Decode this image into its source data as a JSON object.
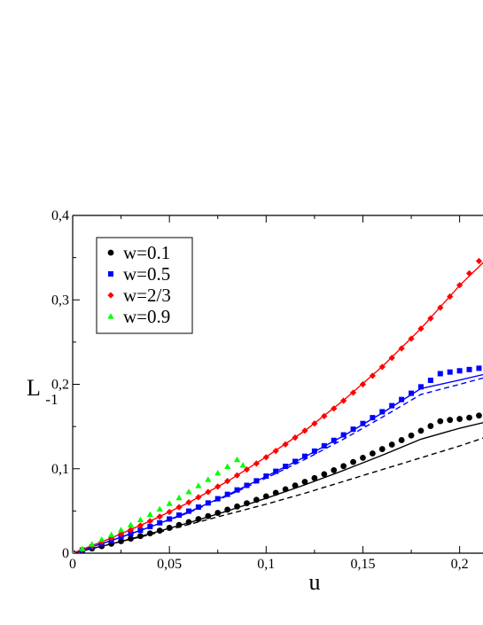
{
  "chart_data": {
    "type": "scatter",
    "xlabel": "u",
    "ylabel": "L",
    "ylabel_subscript": "-1",
    "xlim": [
      0,
      0.213
    ],
    "ylim": [
      0,
      0.4
    ],
    "x_ticks": [
      0,
      0.05,
      0.1,
      0.15,
      0.2
    ],
    "x_tick_labels": [
      "0",
      "0,05",
      "0,1",
      "0,15",
      "0,2"
    ],
    "y_ticks": [
      0,
      0.1,
      0.2,
      0.3,
      0.4
    ],
    "y_tick_labels": [
      "0",
      "0,1",
      "0,2",
      "0,3",
      "0,4"
    ],
    "legend_position": "top-left",
    "series": [
      {
        "name": "w=0.1",
        "color": "#000000",
        "marker": "circle",
        "x": [
          0,
          0.005,
          0.01,
          0.015,
          0.02,
          0.025,
          0.03,
          0.035,
          0.04,
          0.045,
          0.05,
          0.055,
          0.06,
          0.065,
          0.07,
          0.075,
          0.08,
          0.085,
          0.09,
          0.095,
          0.1,
          0.105,
          0.11,
          0.115,
          0.12,
          0.125,
          0.13,
          0.135,
          0.14,
          0.145,
          0.15,
          0.155,
          0.16,
          0.165,
          0.17,
          0.175,
          0.18,
          0.185,
          0.19,
          0.195,
          0.2,
          0.205,
          0.21
        ],
        "y": [
          0,
          0.0027,
          0.0055,
          0.0083,
          0.0112,
          0.0142,
          0.0172,
          0.0203,
          0.0235,
          0.0267,
          0.03,
          0.0334,
          0.0369,
          0.0404,
          0.044,
          0.0477,
          0.0515,
          0.0553,
          0.0592,
          0.0632,
          0.0673,
          0.0715,
          0.0757,
          0.0801,
          0.0845,
          0.089,
          0.0936,
          0.0983,
          0.1031,
          0.108,
          0.113,
          0.1181,
          0.1233,
          0.1286,
          0.1339,
          0.1394,
          0.145,
          0.1506,
          0.1563,
          0.1578,
          0.159,
          0.1605,
          0.163
        ]
      },
      {
        "name": "w=0.5",
        "color": "#0000ff",
        "marker": "square",
        "x": [
          0,
          0.005,
          0.01,
          0.015,
          0.02,
          0.025,
          0.03,
          0.035,
          0.04,
          0.045,
          0.05,
          0.055,
          0.06,
          0.065,
          0.07,
          0.075,
          0.08,
          0.085,
          0.09,
          0.095,
          0.1,
          0.105,
          0.11,
          0.115,
          0.12,
          0.125,
          0.13,
          0.135,
          0.14,
          0.145,
          0.15,
          0.155,
          0.16,
          0.165,
          0.17,
          0.175,
          0.18,
          0.185,
          0.19,
          0.195,
          0.2,
          0.205,
          0.21
        ],
        "y": [
          0,
          0.0036,
          0.0073,
          0.0111,
          0.015,
          0.019,
          0.0231,
          0.0273,
          0.0316,
          0.036,
          0.0405,
          0.0451,
          0.0498,
          0.0546,
          0.0595,
          0.0645,
          0.0697,
          0.0749,
          0.0803,
          0.0857,
          0.0913,
          0.097,
          0.1028,
          0.1087,
          0.1148,
          0.1209,
          0.1272,
          0.1336,
          0.1401,
          0.1468,
          0.1536,
          0.1605,
          0.1675,
          0.1747,
          0.182,
          0.1894,
          0.197,
          0.2047,
          0.2126,
          0.2145,
          0.216,
          0.2175,
          0.219
        ]
      },
      {
        "name": "w=2/3",
        "color": "#ff0000",
        "marker": "diamond",
        "x": [
          0,
          0.005,
          0.01,
          0.015,
          0.02,
          0.025,
          0.03,
          0.035,
          0.04,
          0.045,
          0.05,
          0.055,
          0.06,
          0.065,
          0.07,
          0.075,
          0.08,
          0.085,
          0.09,
          0.095,
          0.1,
          0.105,
          0.11,
          0.115,
          0.12,
          0.125,
          0.13,
          0.135,
          0.14,
          0.145,
          0.15,
          0.155,
          0.16,
          0.165,
          0.17,
          0.175,
          0.18,
          0.185,
          0.19,
          0.195,
          0.2,
          0.205,
          0.21
        ],
        "y": [
          0,
          0.0043,
          0.0087,
          0.0132,
          0.0179,
          0.0227,
          0.0276,
          0.0327,
          0.0379,
          0.0433,
          0.0488,
          0.0545,
          0.0603,
          0.0663,
          0.0725,
          0.0789,
          0.0854,
          0.0922,
          0.0991,
          0.1062,
          0.1136,
          0.1211,
          0.1289,
          0.1369,
          0.1451,
          0.1536,
          0.1623,
          0.1713,
          0.1806,
          0.1901,
          0.2,
          0.2101,
          0.2206,
          0.2314,
          0.2425,
          0.254,
          0.2659,
          0.2781,
          0.2908,
          0.3039,
          0.3174,
          0.3314,
          0.3459
        ]
      },
      {
        "name": "w=0.9",
        "color": "#00ff00",
        "marker": "triangle",
        "x": [
          0,
          0.005,
          0.01,
          0.015,
          0.02,
          0.025,
          0.03,
          0.035,
          0.04,
          0.045,
          0.05,
          0.055,
          0.06,
          0.065,
          0.07,
          0.075,
          0.08,
          0.085,
          0.088
        ],
        "y": [
          0,
          0.0052,
          0.0105,
          0.016,
          0.0216,
          0.0274,
          0.0333,
          0.0394,
          0.0457,
          0.0521,
          0.0587,
          0.0655,
          0.0725,
          0.0797,
          0.0871,
          0.0947,
          0.1025,
          0.1106,
          0.104
        ]
      }
    ],
    "fit_lines": [
      {
        "style": "solid",
        "color": "#000000",
        "x": [
          0,
          0.02,
          0.04,
          0.06,
          0.08,
          0.1,
          0.12,
          0.14,
          0.16,
          0.18,
          0.2,
          0.213
        ],
        "y": [
          0,
          0.011,
          0.023,
          0.036,
          0.05,
          0.065,
          0.081,
          0.098,
          0.116,
          0.135,
          0.148,
          0.155
        ]
      },
      {
        "style": "dashed",
        "color": "#000000",
        "x": [
          0,
          0.02,
          0.04,
          0.06,
          0.08,
          0.1,
          0.12,
          0.14,
          0.16,
          0.18,
          0.2,
          0.213
        ],
        "y": [
          0,
          0.011,
          0.022,
          0.034,
          0.046,
          0.058,
          0.071,
          0.085,
          0.099,
          0.113,
          0.127,
          0.137
        ]
      },
      {
        "style": "solid",
        "color": "#0000ff",
        "x": [
          0,
          0.02,
          0.04,
          0.06,
          0.08,
          0.1,
          0.12,
          0.14,
          0.16,
          0.18,
          0.2,
          0.213
        ],
        "y": [
          0,
          0.015,
          0.031,
          0.049,
          0.069,
          0.091,
          0.114,
          0.139,
          0.166,
          0.195,
          0.205,
          0.212
        ]
      },
      {
        "style": "dashed",
        "color": "#0000ff",
        "x": [
          0,
          0.02,
          0.04,
          0.06,
          0.08,
          0.1,
          0.12,
          0.14,
          0.16,
          0.18,
          0.2,
          0.213
        ],
        "y": [
          0,
          0.015,
          0.031,
          0.048,
          0.068,
          0.089,
          0.111,
          0.135,
          0.161,
          0.188,
          0.2,
          0.208
        ]
      },
      {
        "style": "solid",
        "color": "#ff0000",
        "x": [
          0,
          0.02,
          0.04,
          0.06,
          0.08,
          0.1,
          0.12,
          0.14,
          0.16,
          0.18,
          0.2,
          0.213
        ],
        "y": [
          0,
          0.018,
          0.038,
          0.06,
          0.085,
          0.114,
          0.145,
          0.181,
          0.221,
          0.266,
          0.317,
          0.346
        ]
      }
    ]
  }
}
